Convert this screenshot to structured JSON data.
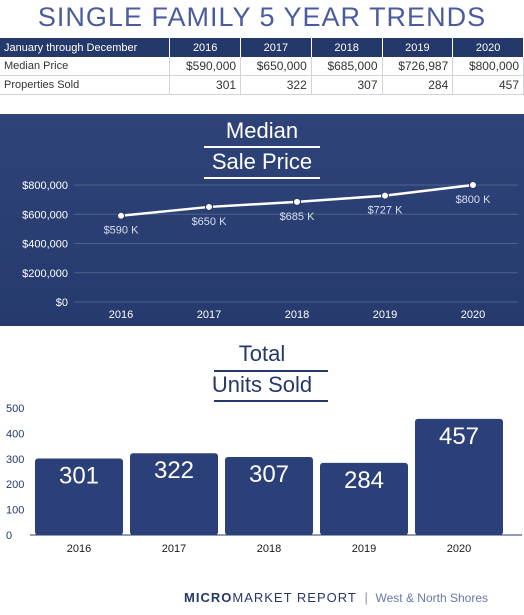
{
  "title": "SINGLE FAMILY 5 YEAR TRENDS",
  "table": {
    "period_label": "January through December",
    "years": [
      "2016",
      "2017",
      "2018",
      "2019",
      "2020"
    ],
    "rows": [
      {
        "label": "Median Price",
        "values": [
          "$590,000",
          "$650,000",
          "$685,000",
          "$726,987",
          "$800,000"
        ]
      },
      {
        "label": "Properties Sold",
        "values": [
          "301",
          "322",
          "307",
          "284",
          "457"
        ]
      }
    ]
  },
  "colors": {
    "navy": "#25386a",
    "bar": "#2b3f78",
    "title_blue": "#4a5c9e"
  },
  "chart_data": [
    {
      "type": "line",
      "title_line1": "Median",
      "title_line2": "Sale Price",
      "categories": [
        "2016",
        "2017",
        "2018",
        "2019",
        "2020"
      ],
      "values": [
        590000,
        650000,
        685000,
        727000,
        800000
      ],
      "data_labels": [
        "$590 K",
        "$650 K",
        "$685 K",
        "$727 K",
        "$800 K"
      ],
      "y_ticks": [
        "$800,000",
        "$600,000",
        "$400,000",
        "$200,000",
        "$0"
      ],
      "ylim": [
        0,
        800000
      ],
      "grid": true
    },
    {
      "type": "bar",
      "title_line1": "Total",
      "title_line2": "Units Sold",
      "categories": [
        "2016",
        "2017",
        "2018",
        "2019",
        "2020"
      ],
      "values": [
        301,
        322,
        307,
        284,
        457
      ],
      "data_labels": [
        "301",
        "322",
        "307",
        "284",
        "457"
      ],
      "y_ticks": [
        "500",
        "400",
        "300",
        "200",
        "100",
        "0"
      ],
      "ylim": [
        0,
        500
      ],
      "grid": false
    }
  ],
  "footer": {
    "brand_bold": "MICRO",
    "brand_rest": "MARKET REPORT",
    "separator": "|",
    "region": "West & North Shores"
  }
}
